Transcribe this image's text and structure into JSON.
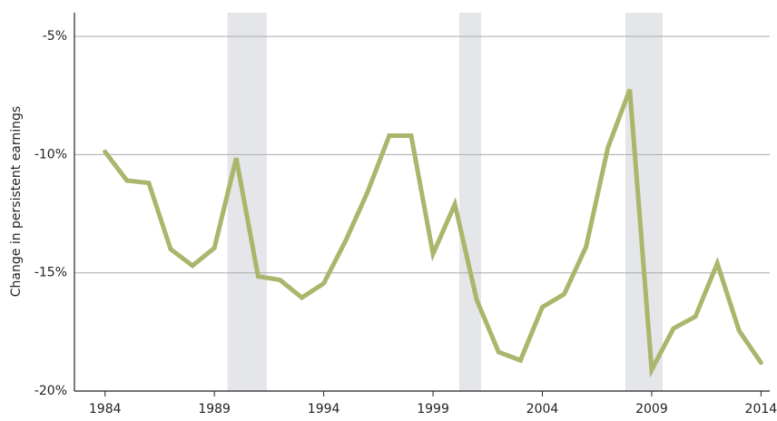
{
  "chart_data": {
    "type": "line",
    "y_label": "Change in persistent earnings",
    "x": [
      1984,
      1985,
      1986,
      1987,
      1988,
      1989,
      1990,
      1991,
      1992,
      1993,
      1994,
      1995,
      1996,
      1997,
      1998,
      1999,
      2000,
      2001,
      2002,
      2003,
      2004,
      2005,
      2006,
      2007,
      2008,
      2009,
      2010,
      2011,
      2012,
      2013,
      2014
    ],
    "series": [
      {
        "color": "#abb56b",
        "values": [
          -9.88,
          -11.1,
          -11.2,
          -14.0,
          -14.7,
          -13.95,
          -10.15,
          -15.15,
          -15.3,
          -16.05,
          -15.45,
          -13.65,
          -11.6,
          -9.2,
          -9.2,
          -14.2,
          -12.1,
          -16.15,
          -18.35,
          -18.7,
          -16.45,
          -15.9,
          -13.9,
          -9.7,
          -7.25,
          -19.1,
          -17.35,
          -16.85,
          -14.6,
          -17.45,
          -18.8
        ]
      }
    ],
    "shaded_x_ranges": [
      [
        1989.6,
        1991.4
      ],
      [
        2000.2,
        2001.2
      ],
      [
        2007.8,
        2009.5
      ]
    ],
    "shade_color": "#e4e6e9",
    "xlim": [
      1982.6,
      2014.4
    ],
    "xticks": [
      1984,
      1989,
      1994,
      1999,
      2004,
      2009,
      2014
    ],
    "ylim": [
      -20,
      -4
    ],
    "yticks": [
      {
        "value": -20,
        "label": "-20%"
      },
      {
        "value": -15,
        "label": "-15%"
      },
      {
        "value": -10,
        "label": "-10%"
      },
      {
        "value": -5,
        "label": "-5%"
      }
    ],
    "grid": true
  }
}
